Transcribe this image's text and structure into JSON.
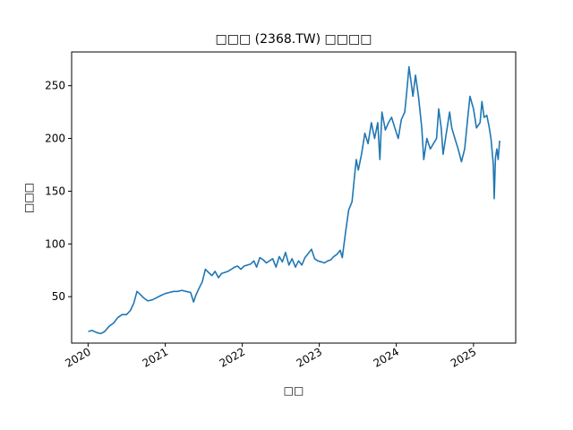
{
  "chart_data": {
    "type": "line",
    "title": "□□□ (2368.TW) □□□□",
    "xlabel": "□□",
    "ylabel": "□□□",
    "xlim": [
      "2019-10-15",
      "2025-07-20"
    ],
    "ylim": [
      6,
      282
    ],
    "x_ticks": [
      "2020",
      "2021",
      "2022",
      "2023",
      "2024",
      "2025"
    ],
    "y_ticks": [
      50,
      100,
      150,
      200,
      250
    ],
    "grid": false,
    "legend": "none",
    "colors": {
      "line": "#1f77b4"
    },
    "series": [
      {
        "points": [
          [
            "2020-01-02",
            17
          ],
          [
            "2020-01-20",
            18
          ],
          [
            "2020-02-10",
            16
          ],
          [
            "2020-03-01",
            15
          ],
          [
            "2020-03-20",
            17
          ],
          [
            "2020-04-10",
            22
          ],
          [
            "2020-05-01",
            25
          ],
          [
            "2020-05-20",
            30
          ],
          [
            "2020-06-10",
            33
          ],
          [
            "2020-07-01",
            33
          ],
          [
            "2020-07-20",
            37
          ],
          [
            "2020-08-05",
            44
          ],
          [
            "2020-08-20",
            55
          ],
          [
            "2020-09-05",
            52
          ],
          [
            "2020-09-20",
            49
          ],
          [
            "2020-10-10",
            46
          ],
          [
            "2020-11-01",
            47
          ],
          [
            "2020-11-20",
            49
          ],
          [
            "2020-12-10",
            51
          ],
          [
            "2021-01-01",
            53
          ],
          [
            "2021-01-20",
            54
          ],
          [
            "2021-02-10",
            55
          ],
          [
            "2021-03-01",
            55
          ],
          [
            "2021-03-20",
            56
          ],
          [
            "2021-04-10",
            55
          ],
          [
            "2021-05-01",
            54
          ],
          [
            "2021-05-15",
            45
          ],
          [
            "2021-05-25",
            51
          ],
          [
            "2021-06-10",
            58
          ],
          [
            "2021-06-25",
            64
          ],
          [
            "2021-07-10",
            76
          ],
          [
            "2021-07-25",
            73
          ],
          [
            "2021-08-10",
            70
          ],
          [
            "2021-08-25",
            74
          ],
          [
            "2021-09-10",
            68
          ],
          [
            "2021-09-25",
            72
          ],
          [
            "2021-10-10",
            73
          ],
          [
            "2021-10-25",
            74
          ],
          [
            "2021-11-10",
            76
          ],
          [
            "2021-11-25",
            78
          ],
          [
            "2021-12-10",
            79
          ],
          [
            "2021-12-25",
            76
          ],
          [
            "2022-01-10",
            79
          ],
          [
            "2022-01-25",
            80
          ],
          [
            "2022-02-10",
            81
          ],
          [
            "2022-02-25",
            84
          ],
          [
            "2022-03-10",
            78
          ],
          [
            "2022-03-25",
            87
          ],
          [
            "2022-04-10",
            85
          ],
          [
            "2022-04-25",
            82
          ],
          [
            "2022-05-10",
            84
          ],
          [
            "2022-05-25",
            86
          ],
          [
            "2022-06-10",
            78
          ],
          [
            "2022-06-25",
            88
          ],
          [
            "2022-07-10",
            83
          ],
          [
            "2022-07-25",
            92
          ],
          [
            "2022-08-10",
            80
          ],
          [
            "2022-08-25",
            86
          ],
          [
            "2022-09-10",
            78
          ],
          [
            "2022-09-25",
            84
          ],
          [
            "2022-10-10",
            80
          ],
          [
            "2022-10-25",
            87
          ],
          [
            "2022-11-10",
            91
          ],
          [
            "2022-11-25",
            95
          ],
          [
            "2022-12-10",
            86
          ],
          [
            "2022-12-25",
            84
          ],
          [
            "2023-01-10",
            83
          ],
          [
            "2023-01-25",
            82
          ],
          [
            "2023-02-10",
            84
          ],
          [
            "2023-02-25",
            85
          ],
          [
            "2023-03-10",
            88
          ],
          [
            "2023-03-25",
            90
          ],
          [
            "2023-04-10",
            94
          ],
          [
            "2023-04-20",
            87
          ],
          [
            "2023-05-05",
            110
          ],
          [
            "2023-05-20",
            132
          ],
          [
            "2023-06-05",
            140
          ],
          [
            "2023-06-15",
            160
          ],
          [
            "2023-06-25",
            180
          ],
          [
            "2023-07-05",
            170
          ],
          [
            "2023-07-20",
            185
          ],
          [
            "2023-08-05",
            205
          ],
          [
            "2023-08-20",
            195
          ],
          [
            "2023-09-05",
            215
          ],
          [
            "2023-09-20",
            200
          ],
          [
            "2023-10-05",
            215
          ],
          [
            "2023-10-15",
            180
          ],
          [
            "2023-10-25",
            225
          ],
          [
            "2023-11-10",
            208
          ],
          [
            "2023-11-25",
            215
          ],
          [
            "2023-12-10",
            220
          ],
          [
            "2023-12-25",
            210
          ],
          [
            "2024-01-10",
            200
          ],
          [
            "2024-01-25",
            218
          ],
          [
            "2024-02-10",
            225
          ],
          [
            "2024-02-20",
            245
          ],
          [
            "2024-03-01",
            268
          ],
          [
            "2024-03-10",
            255
          ],
          [
            "2024-03-20",
            240
          ],
          [
            "2024-04-01",
            260
          ],
          [
            "2024-04-15",
            240
          ],
          [
            "2024-05-01",
            210
          ],
          [
            "2024-05-10",
            180
          ],
          [
            "2024-05-25",
            200
          ],
          [
            "2024-06-10",
            190
          ],
          [
            "2024-06-25",
            195
          ],
          [
            "2024-07-10",
            200
          ],
          [
            "2024-07-20",
            228
          ],
          [
            "2024-08-01",
            210
          ],
          [
            "2024-08-10",
            185
          ],
          [
            "2024-08-25",
            205
          ],
          [
            "2024-09-10",
            225
          ],
          [
            "2024-09-20",
            210
          ],
          [
            "2024-10-05",
            200
          ],
          [
            "2024-10-20",
            190
          ],
          [
            "2024-11-05",
            178
          ],
          [
            "2024-11-20",
            190
          ],
          [
            "2024-12-05",
            220
          ],
          [
            "2024-12-15",
            240
          ],
          [
            "2025-01-01",
            228
          ],
          [
            "2025-01-15",
            210
          ],
          [
            "2025-02-01",
            215
          ],
          [
            "2025-02-10",
            235
          ],
          [
            "2025-02-20",
            220
          ],
          [
            "2025-03-05",
            222
          ],
          [
            "2025-03-15",
            212
          ],
          [
            "2025-03-25",
            200
          ],
          [
            "2025-04-05",
            175
          ],
          [
            "2025-04-09",
            143
          ],
          [
            "2025-04-15",
            182
          ],
          [
            "2025-04-22",
            190
          ],
          [
            "2025-04-28",
            180
          ],
          [
            "2025-05-05",
            198
          ]
        ]
      }
    ]
  }
}
